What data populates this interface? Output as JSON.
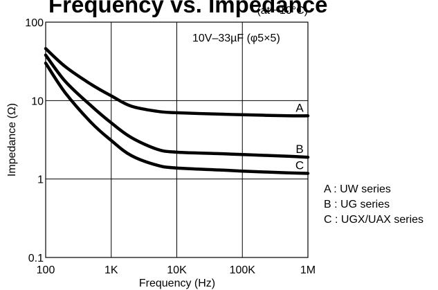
{
  "title": "Frequency vs. Impedance",
  "condition": "(at −10°C)",
  "chart_data": {
    "type": "line",
    "title": "Frequency vs. Impedance",
    "xlabel": "Frequency (Hz)",
    "ylabel": "Impedance (Ω)",
    "x_scale": "log",
    "y_scale": "log",
    "xlim": [
      100,
      1000000
    ],
    "ylim": [
      0.1,
      100
    ],
    "grid": true,
    "x_ticks": [
      {
        "value": 100,
        "label": "100"
      },
      {
        "value": 1000,
        "label": "1K"
      },
      {
        "value": 10000,
        "label": "10K"
      },
      {
        "value": 100000,
        "label": "100K"
      },
      {
        "value": 1000000,
        "label": "1M"
      }
    ],
    "y_ticks": [
      {
        "value": 0.1,
        "label": "0.1"
      },
      {
        "value": 1,
        "label": "1"
      },
      {
        "value": 10,
        "label": "10"
      },
      {
        "value": 100,
        "label": "100"
      }
    ],
    "annotation": "10V–33µF (φ5×5)",
    "series": [
      {
        "name": "A",
        "x": [
          100,
          200,
          500,
          1000,
          2000,
          5000,
          10000,
          50000,
          100000,
          500000,
          1000000
        ],
        "values": [
          46,
          27,
          16,
          11.5,
          8.5,
          7.3,
          7.0,
          6.7,
          6.6,
          6.4,
          6.4
        ]
      },
      {
        "name": "B",
        "x": [
          100,
          200,
          500,
          1000,
          2000,
          5000,
          10000,
          50000,
          100000,
          500000,
          1000000
        ],
        "values": [
          38,
          17.5,
          8.5,
          5.2,
          3.4,
          2.4,
          2.2,
          2.1,
          2.05,
          1.95,
          1.9
        ]
      },
      {
        "name": "C",
        "x": [
          100,
          200,
          500,
          1000,
          2000,
          5000,
          10000,
          50000,
          100000,
          500000,
          1000000
        ],
        "values": [
          30,
          12.5,
          5.2,
          3.1,
          2.0,
          1.5,
          1.38,
          1.3,
          1.26,
          1.2,
          1.18
        ]
      }
    ]
  },
  "legend": [
    {
      "key": "A",
      "text": "A : UW series"
    },
    {
      "key": "B",
      "text": "B : UG series"
    },
    {
      "key": "C",
      "text": "C : UGX/UAX series"
    }
  ]
}
